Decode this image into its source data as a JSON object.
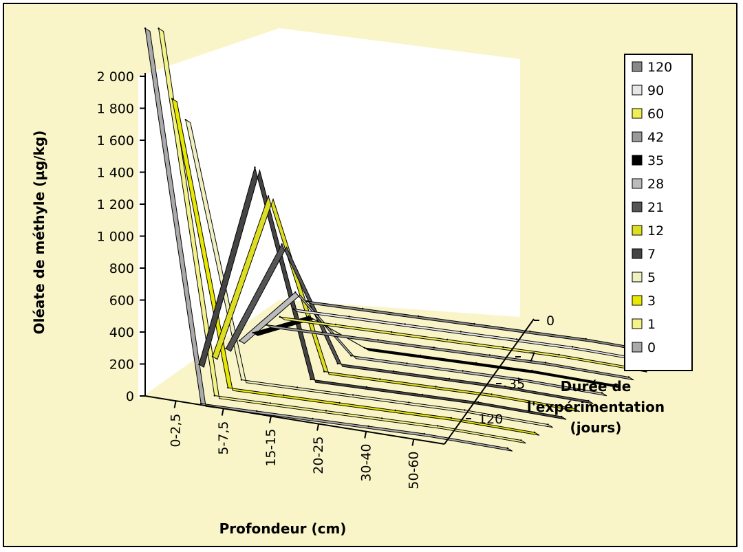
{
  "chart_data": {
    "type": "line",
    "style": "3d-ribbon",
    "ylabel": "Oléate de méthyle (µg/kg)",
    "xlabel": "Profondeur (cm)",
    "zlabel_lines": [
      "Durée de",
      "l'expérimentation",
      "(jours)"
    ],
    "y_ticks": [
      "0",
      "200",
      "400",
      "600",
      "800",
      "1 000",
      "1 200",
      "1 400",
      "1 600",
      "1 800",
      "2 000"
    ],
    "ylim": [
      0,
      2000
    ],
    "categories": [
      "0-2,5",
      "5-7,5",
      "15-15",
      "20-25",
      "30-40",
      "50-60"
    ],
    "z_ticks": [
      "0",
      "7",
      "35",
      "120"
    ],
    "legend_position": "right",
    "series": [
      {
        "name": "120",
        "color": "#888888",
        "values": [
          0,
          0,
          0,
          0,
          0,
          0
        ]
      },
      {
        "name": "90",
        "color": "#e6e6e6",
        "values": [
          0,
          0,
          0,
          0,
          0,
          0
        ]
      },
      {
        "name": "60",
        "color": "#eeee55",
        "values": [
          0,
          0,
          0,
          0,
          0,
          0
        ]
      },
      {
        "name": "42",
        "color": "#999999",
        "values": [
          0,
          0,
          0,
          0,
          0,
          0
        ]
      },
      {
        "name": "35",
        "color": "#000000",
        "values": [
          0,
          150,
          0,
          0,
          0,
          0
        ]
      },
      {
        "name": "28",
        "color": "#bbbbbb",
        "values": [
          0,
          350,
          0,
          0,
          0,
          0
        ]
      },
      {
        "name": "21",
        "color": "#555555",
        "values": [
          0,
          700,
          0,
          0,
          0,
          0
        ]
      },
      {
        "name": "12",
        "color": "#dddd22",
        "values": [
          0,
          1050,
          0,
          0,
          0,
          0
        ]
      },
      {
        "name": "7",
        "color": "#444444",
        "values": [
          0,
          1280,
          0,
          0,
          0,
          0
        ]
      },
      {
        "name": "5",
        "color": "#f0f0c0",
        "values": [
          1580,
          0,
          0,
          0,
          0,
          0
        ]
      },
      {
        "name": "3",
        "color": "#e8e800",
        "values": [
          1760,
          0,
          0,
          0,
          0,
          0
        ]
      },
      {
        "name": "1",
        "color": "#f3f38a",
        "values": [
          2250,
          0,
          0,
          0,
          0,
          0
        ]
      },
      {
        "name": "0",
        "color": "#aaaaaa",
        "values": [
          2300,
          0,
          0,
          0,
          0,
          0
        ]
      }
    ]
  }
}
